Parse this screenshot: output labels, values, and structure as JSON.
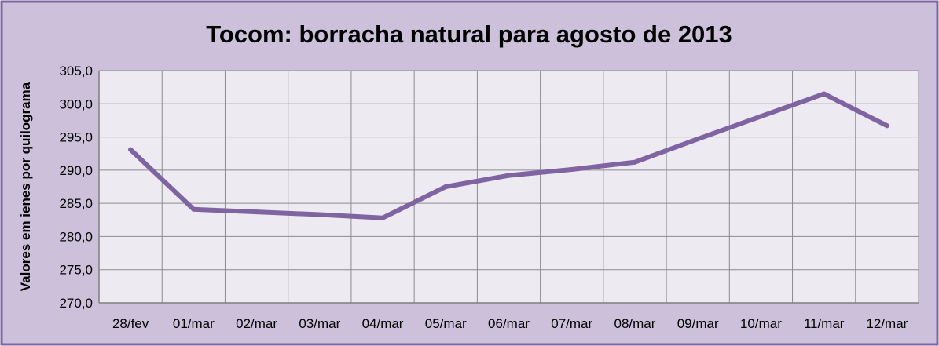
{
  "chart_data": {
    "type": "line",
    "title": "Tocom: borracha natural para agosto de 2013",
    "xlabel": "",
    "ylabel": "Valores em ienes por quilograma",
    "categories": [
      "28/fev",
      "01/mar",
      "02/mar",
      "03/mar",
      "04/mar",
      "05/mar",
      "06/mar",
      "07/mar",
      "08/mar",
      "09/mar",
      "10/mar",
      "11/mar",
      "12/mar"
    ],
    "series": [
      {
        "values": [
          293.1,
          284.1,
          283.7,
          283.3,
          282.8,
          287.5,
          289.2,
          290.1,
          291.2,
          294.7,
          298.1,
          301.5,
          296.7
        ]
      }
    ],
    "ylim": [
      270,
      305
    ],
    "yticks": [
      "270,0",
      "275,0",
      "280,0",
      "285,0",
      "290,0",
      "295,0",
      "300,0",
      "305,0"
    ],
    "grid": true,
    "legend": "none",
    "colors": {
      "line": "#8064a2",
      "background": "#ccc0da",
      "plot_area": "#edeaf1",
      "border": "#8064a2",
      "grid": "#8c8c8c"
    }
  }
}
